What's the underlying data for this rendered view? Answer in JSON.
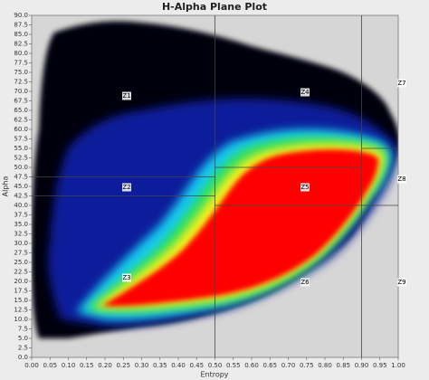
{
  "chart_data": {
    "type": "density",
    "title": "H-Alpha Plane Plot",
    "x_label": "Entropy",
    "y_label": "Alpha",
    "xlim": [
      0,
      1
    ],
    "ylim": [
      0,
      90
    ],
    "xticks": [
      {
        "value": 0,
        "label": "0.00"
      },
      0.05,
      {
        "value": 0.1,
        "label": "0.10"
      },
      0.15,
      {
        "value": 0.2,
        "label": "0.20"
      },
      0.25,
      {
        "value": 0.3,
        "label": "0.30"
      },
      0.35,
      {
        "value": 0.4,
        "label": "0.40"
      },
      0.45,
      {
        "value": 0.5,
        "label": "0.50"
      },
      0.55,
      {
        "value": 0.6,
        "label": "0.60"
      },
      0.65,
      {
        "value": 0.7,
        "label": "0.70"
      },
      0.75,
      {
        "value": 0.8,
        "label": "0.80"
      },
      0.85,
      {
        "value": 0.9,
        "label": "0.90"
      },
      0.95,
      {
        "value": 1,
        "label": "1.00"
      }
    ],
    "yticks": [
      {
        "value": 0,
        "label": "0.0"
      },
      2.5,
      {
        "value": 5,
        "label": "5.0"
      },
      7.5,
      {
        "value": 10,
        "label": "10.0"
      },
      12.5,
      {
        "value": 15,
        "label": "15.0"
      },
      17.5,
      {
        "value": 20,
        "label": "20.0"
      },
      22.5,
      {
        "value": 25,
        "label": "25.0"
      },
      27.5,
      {
        "value": 30,
        "label": "30.0"
      },
      32.5,
      {
        "value": 35,
        "label": "35.0"
      },
      37.5,
      {
        "value": 40,
        "label": "40.0"
      },
      42.5,
      {
        "value": 45,
        "label": "45.0"
      },
      47.5,
      {
        "value": 50,
        "label": "50.0"
      },
      52.5,
      {
        "value": 55,
        "label": "55.0"
      },
      57.5,
      {
        "value": 60,
        "label": "60.0"
      },
      62.5,
      {
        "value": 65,
        "label": "65.0"
      },
      67.5,
      {
        "value": 70,
        "label": "70.0"
      },
      72.5,
      {
        "value": 75,
        "label": "75.0"
      },
      77.5,
      {
        "value": 80,
        "label": "80.0"
      },
      82.5,
      {
        "value": 85,
        "label": "85.0"
      },
      87.5,
      {
        "value": 90,
        "label": "90.0"
      }
    ],
    "entropy_boundaries": [
      0.5,
      0.9
    ],
    "alpha_boundaries_low_entropy": [
      42.5,
      47.5
    ],
    "alpha_boundaries_mid_entropy": [
      40,
      50
    ],
    "alpha_boundaries_high_entropy": [
      40,
      55
    ],
    "zones": [
      "Z1",
      "Z2",
      "Z3",
      "Z4",
      "Z5",
      "Z6",
      "Z7",
      "Z8",
      "Z9"
    ]
  }
}
